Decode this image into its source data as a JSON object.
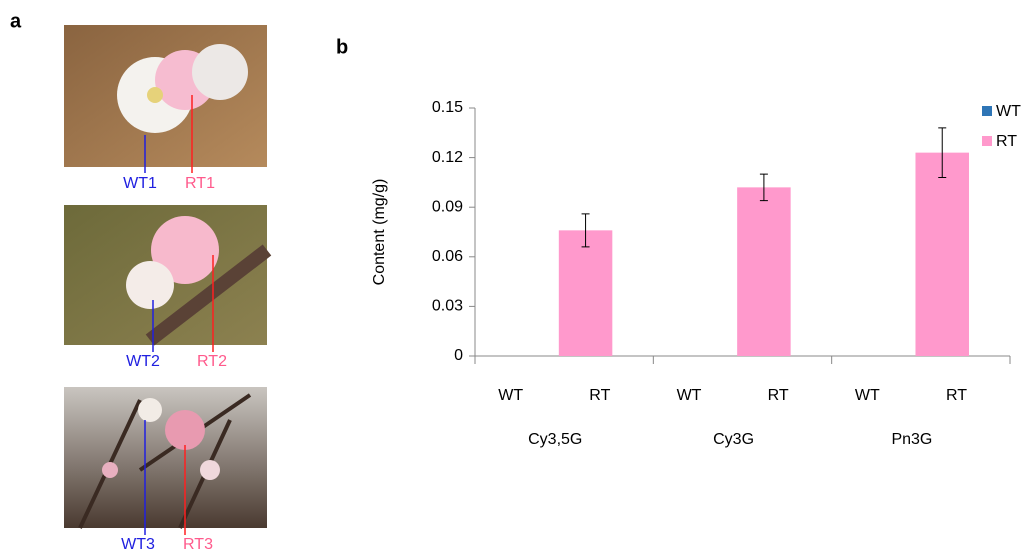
{
  "panel_labels": [
    "a",
    "b"
  ],
  "photos": [
    {
      "wt_label": "WT1",
      "rt_label": "RT1"
    },
    {
      "wt_label": "WT2",
      "rt_label": "RT2"
    },
    {
      "wt_label": "WT3",
      "rt_label": "RT3"
    }
  ],
  "chart_data": {
    "type": "bar",
    "y_label": "Content  (mg/g)",
    "categories": [
      "Cy3,5G",
      "Cy3G",
      "Pn3G"
    ],
    "series": [
      {
        "name": "WT",
        "color": "#2e75b6",
        "values": [
          0,
          0,
          0
        ]
      },
      {
        "name": "RT",
        "color": "#ff99cc",
        "values": [
          0.076,
          0.102,
          0.123
        ],
        "errors": [
          0.01,
          0.008,
          0.015
        ]
      }
    ],
    "ylim": [
      0,
      0.15
    ],
    "yticks": [
      0,
      0.03,
      0.06,
      0.09,
      0.12,
      0.15
    ],
    "legend": "right"
  }
}
